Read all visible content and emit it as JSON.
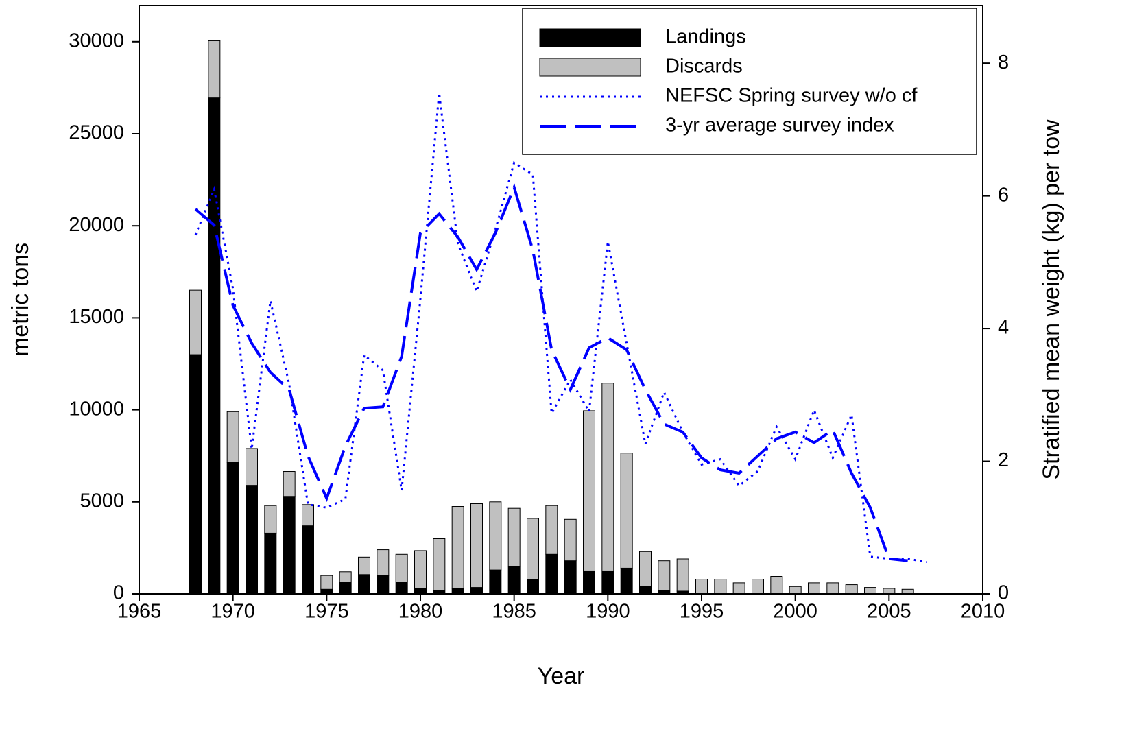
{
  "chart_data": {
    "type": "bar",
    "x_label": "Year",
    "y_label": "metric tons",
    "y2_label": "Stratified mean weight (kg) per tow",
    "y2_color": "#0000ff",
    "stacked": true,
    "legend": "top-right",
    "x": [
      1968,
      1969,
      1970,
      1971,
      1972,
      1973,
      1974,
      1975,
      1976,
      1977,
      1978,
      1979,
      1980,
      1981,
      1982,
      1983,
      1984,
      1985,
      1986,
      1987,
      1988,
      1989,
      1990,
      1991,
      1992,
      1993,
      1994,
      1995,
      1996,
      1997,
      1998,
      1999,
      2000,
      2001,
      2002,
      2003,
      2004,
      2005,
      2006,
      2007
    ],
    "series": [
      {
        "name": "Landings",
        "type": "bar",
        "color": "#000000",
        "values": [
          13000,
          26950,
          7150,
          5900,
          3300,
          5300,
          3700,
          250,
          650,
          1050,
          1000,
          650,
          300,
          200,
          300,
          350,
          1300,
          1500,
          800,
          2150,
          1800,
          1250,
          1250,
          1400,
          400,
          200,
          150,
          0,
          0,
          0,
          0,
          0,
          0,
          0,
          0,
          0,
          0,
          0,
          0,
          null
        ]
      },
      {
        "name": "Discards",
        "type": "bar",
        "color": "#c0c0c0",
        "values": [
          3500,
          3100,
          2750,
          2000,
          1500,
          1350,
          1150,
          750,
          550,
          950,
          1400,
          1500,
          2050,
          2800,
          4450,
          4550,
          3700,
          3150,
          3300,
          2650,
          2250,
          8700,
          10200,
          6250,
          1900,
          1600,
          1750,
          800,
          800,
          600,
          800,
          950,
          400,
          600,
          600,
          500,
          350,
          300,
          250,
          null
        ]
      },
      {
        "name": "NEFSC Spring survey w/o cf",
        "type": "line",
        "axis": "y2",
        "color": "#0000ff",
        "dash": "dotted",
        "values": [
          5.41,
          6.1,
          4.6,
          2.18,
          4.42,
          3.16,
          1.35,
          1.3,
          1.43,
          3.6,
          3.37,
          1.56,
          4.45,
          7.55,
          5.28,
          4.56,
          5.49,
          6.5,
          6.32,
          2.72,
          3.23,
          2.75,
          5.31,
          3.78,
          2.26,
          3.04,
          2.44,
          1.95,
          2.03,
          1.63,
          1.85,
          2.52,
          2.03,
          2.77,
          2.05,
          2.7,
          0.56,
          0.53,
          0.53,
          0.48
        ]
      },
      {
        "name": "3-yr average survey index",
        "type": "line",
        "axis": "y2",
        "color": "#0000ff",
        "dash": "dashed",
        "values": [
          5.8,
          5.56,
          4.35,
          3.78,
          3.34,
          3.08,
          2.08,
          1.44,
          2.23,
          2.8,
          2.82,
          3.58,
          5.44,
          5.73,
          5.38,
          4.89,
          5.44,
          6.13,
          5.18,
          3.68,
          3.08,
          3.71,
          3.86,
          3.68,
          3.08,
          2.56,
          2.44,
          2.05,
          1.87,
          1.82,
          2.08,
          2.34,
          2.44,
          2.28,
          2.47,
          1.82,
          1.3,
          0.53,
          0.5,
          null
        ]
      }
    ],
    "xlim": [
      1965,
      2010
    ],
    "xticks": [
      1965,
      1970,
      1975,
      1980,
      1985,
      1990,
      1995,
      2000,
      2005,
      2010
    ],
    "ylim": [
      0,
      31967
    ],
    "yticks": [
      0,
      5000,
      10000,
      15000,
      20000,
      25000,
      30000
    ],
    "y2lim": [
      0,
      8.87
    ],
    "y2ticks": [
      0,
      2,
      4,
      6,
      8
    ]
  }
}
